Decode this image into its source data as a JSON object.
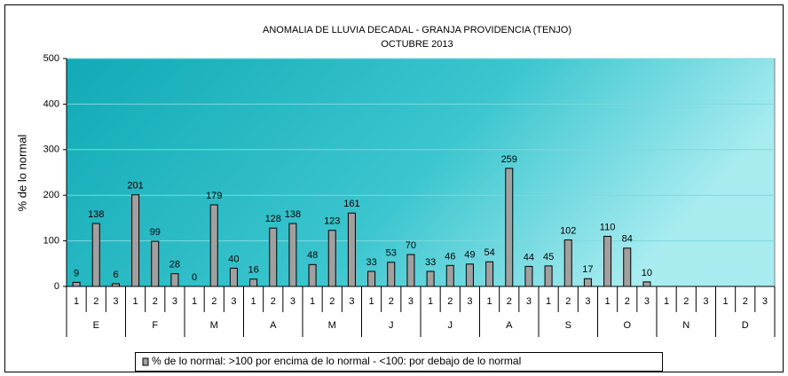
{
  "chart_data": {
    "type": "bar",
    "title": "ANOMALIA DE LLUVIA DECADAL - GRANJA PROVIDENCIA (TENJO)",
    "subtitle": "OCTUBRE 2013",
    "y_label": "% de lo normal",
    "categories": [
      "1",
      "2",
      "3",
      "1",
      "2",
      "3",
      "1",
      "2",
      "3",
      "1",
      "2",
      "3",
      "1",
      "2",
      "3",
      "1",
      "2",
      "3",
      "1",
      "2",
      "3",
      "1",
      "2",
      "3",
      "1",
      "2",
      "3",
      "1",
      "2",
      "3",
      "1",
      "2",
      "3",
      "1",
      "2",
      "3"
    ],
    "groups": [
      "E",
      "F",
      "M",
      "A",
      "M",
      "J",
      "J",
      "A",
      "S",
      "O",
      "N",
      "D"
    ],
    "series": [
      {
        "name": "% de lo normal: >100 por encima de lo normal - <100: por debajo de lo normal",
        "color": "#a0a0a0",
        "values": [
          9,
          138,
          6,
          201,
          99,
          28,
          0,
          179,
          40,
          16,
          128,
          138,
          48,
          123,
          161,
          33,
          53,
          70,
          33,
          46,
          49,
          54,
          259,
          44,
          45,
          102,
          17,
          110,
          84,
          10,
          null,
          null,
          null,
          null,
          null,
          null
        ]
      }
    ],
    "ylim": [
      0,
      500
    ],
    "yticks": [
      0,
      100,
      200,
      300,
      400,
      500
    ],
    "grid": true
  }
}
